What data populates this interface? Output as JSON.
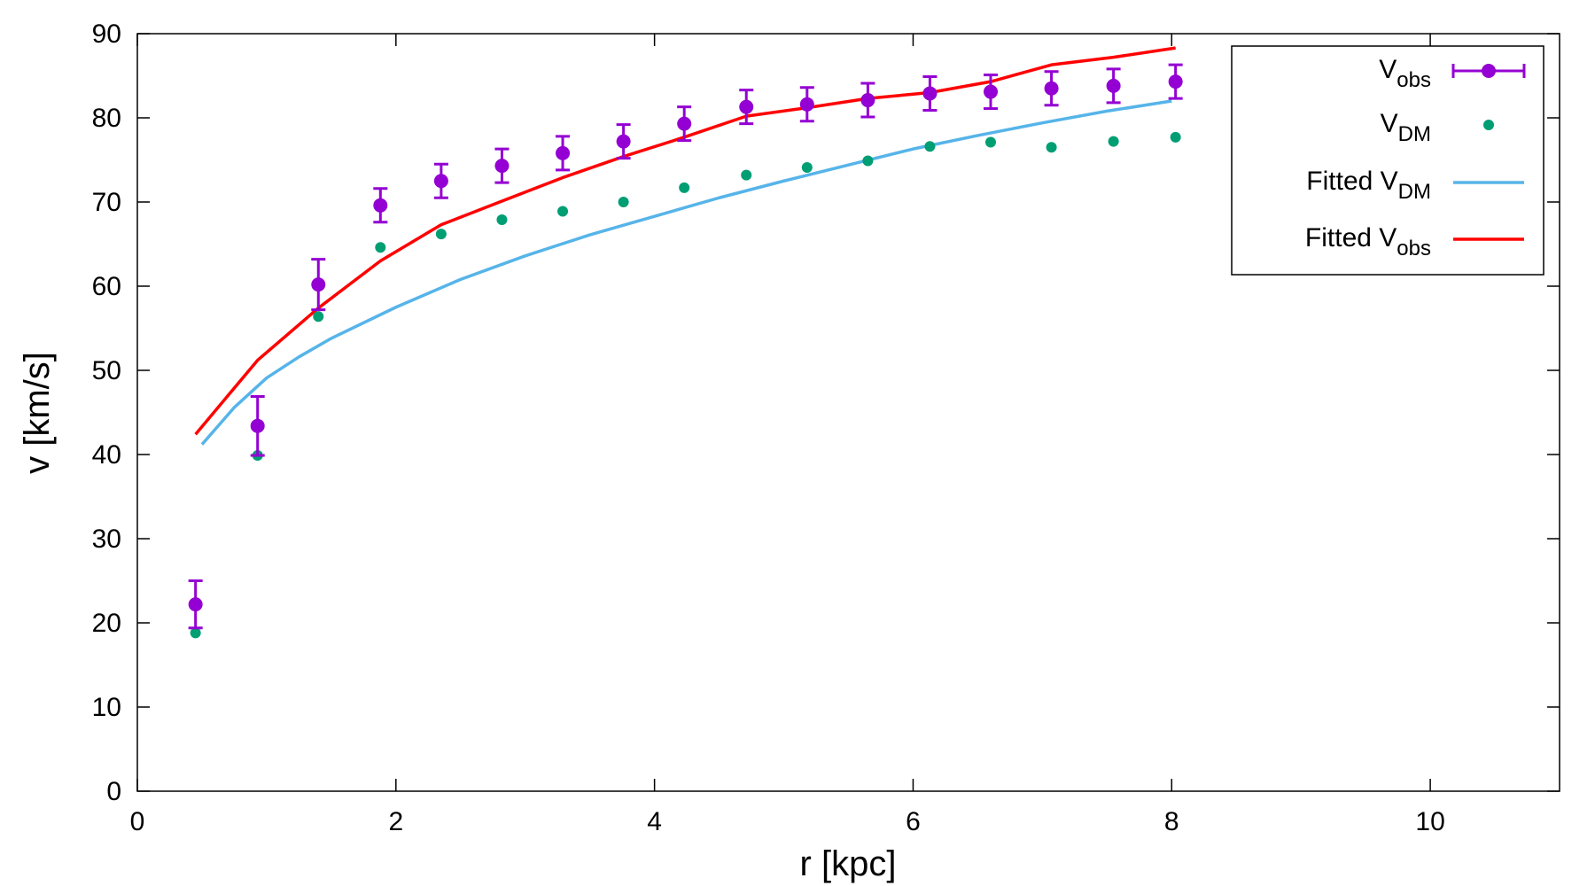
{
  "chart_data": {
    "type": "scatter",
    "title": "",
    "xlabel": "r [kpc]",
    "ylabel": "v [km/s]",
    "xlim": [
      0,
      11
    ],
    "ylim": [
      0,
      90
    ],
    "xticks": [
      0,
      2,
      4,
      6,
      8,
      10
    ],
    "yticks": [
      0,
      10,
      20,
      30,
      40,
      50,
      60,
      70,
      80,
      90
    ],
    "grid": false,
    "legend_position": "top-right",
    "series": [
      {
        "name": "Vobs",
        "label_main": "V",
        "label_sub": "obs",
        "kind": "points-errorbars",
        "color": "#9400D3",
        "x": [
          0.45,
          0.93,
          1.4,
          1.88,
          2.35,
          2.82,
          3.29,
          3.76,
          4.23,
          4.71,
          5.18,
          5.65,
          6.13,
          6.6,
          7.07,
          7.55,
          8.03
        ],
        "y": [
          22.2,
          43.4,
          60.2,
          69.6,
          72.5,
          74.3,
          75.8,
          77.2,
          79.3,
          81.3,
          81.6,
          82.1,
          82.9,
          83.1,
          83.5,
          83.8,
          84.3
        ],
        "err": [
          2.8,
          3.5,
          3.0,
          2.0,
          2.0,
          2.0,
          2.0,
          2.0,
          2.0,
          2.0,
          2.0,
          2.0,
          2.0,
          2.0,
          2.0,
          2.0,
          2.0
        ]
      },
      {
        "name": "VDM",
        "label_main": "V",
        "label_sub": "DM",
        "kind": "points",
        "color": "#009E73",
        "x": [
          0.45,
          0.93,
          1.4,
          1.88,
          2.35,
          2.82,
          3.29,
          3.76,
          4.23,
          4.71,
          5.18,
          5.65,
          6.13,
          6.6,
          7.07,
          7.55,
          8.03
        ],
        "y": [
          18.8,
          39.9,
          56.4,
          64.6,
          66.2,
          67.9,
          68.9,
          70.0,
          71.7,
          73.2,
          74.1,
          74.9,
          76.6,
          77.1,
          76.5,
          77.2,
          77.7
        ]
      },
      {
        "name": "Fitted VDM",
        "label_main": "Fitted V",
        "label_sub": "DM",
        "kind": "line",
        "color": "#56B4E9",
        "x": [
          0.5,
          0.75,
          1.0,
          1.25,
          1.5,
          2.0,
          2.5,
          3.0,
          3.5,
          4.0,
          4.5,
          5.0,
          5.5,
          6.0,
          6.5,
          7.0,
          7.5,
          8.0
        ],
        "y": [
          41.2,
          45.6,
          49.1,
          51.6,
          53.8,
          57.5,
          60.8,
          63.6,
          66.1,
          68.3,
          70.5,
          72.5,
          74.4,
          76.3,
          77.9,
          79.4,
          80.8,
          82.0
        ]
      },
      {
        "name": "Fitted Vobs",
        "label_main": "Fitted V",
        "label_sub": "obs",
        "kind": "line",
        "color": "#FF0000",
        "x": [
          0.45,
          0.93,
          1.4,
          1.88,
          2.35,
          2.82,
          3.29,
          3.76,
          4.23,
          4.71,
          5.18,
          5.65,
          6.13,
          6.6,
          7.07,
          7.55,
          8.03
        ],
        "y": [
          42.4,
          51.2,
          57.4,
          63.0,
          67.3,
          70.1,
          72.9,
          75.4,
          77.7,
          80.2,
          81.2,
          82.3,
          83.0,
          84.3,
          86.3,
          87.2,
          88.3
        ]
      }
    ]
  }
}
